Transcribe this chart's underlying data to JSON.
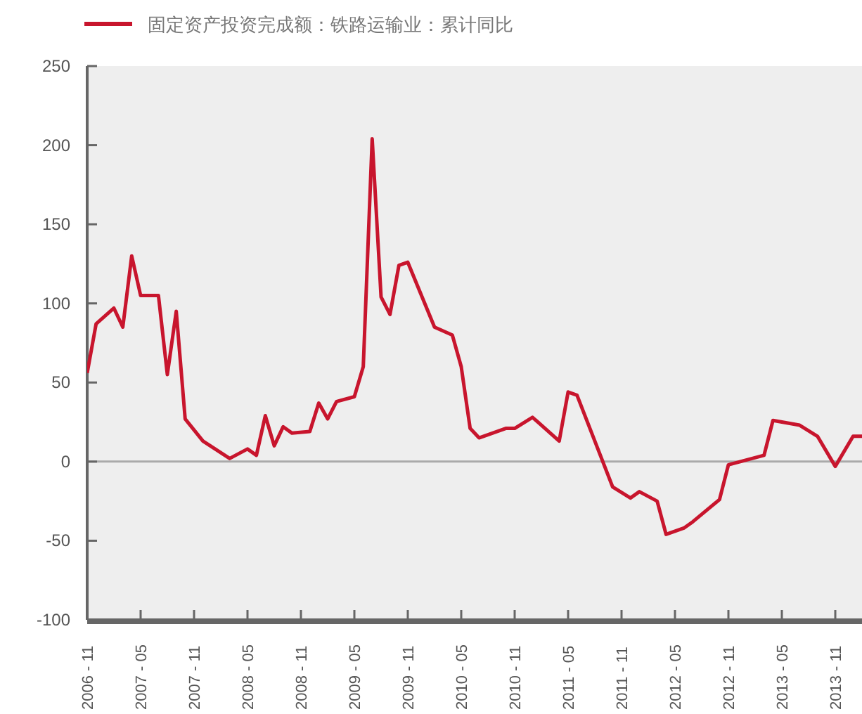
{
  "chart_data": {
    "type": "line",
    "legend": "top left",
    "grid": false,
    "marker": "none",
    "line_style": "solid",
    "xlim": [
      "2006-11",
      "2014-02"
    ],
    "ylim": [
      -100,
      250
    ],
    "yticks": [
      -100,
      -50,
      0,
      50,
      100,
      150,
      200,
      250
    ],
    "xticks": [
      {
        "value": "2006-11",
        "label": "2006 - 11"
      },
      {
        "value": "2007-05",
        "label": "2007 - 05"
      },
      {
        "value": "2007-11",
        "label": "2007 - 11"
      },
      {
        "value": "2008-05",
        "label": "2008 - 05"
      },
      {
        "value": "2008-11",
        "label": "2008 - 11"
      },
      {
        "value": "2009-05",
        "label": "2009 - 05"
      },
      {
        "value": "2009-11",
        "label": "2009 - 11"
      },
      {
        "value": "2010-05",
        "label": "2010 - 05"
      },
      {
        "value": "2010-11",
        "label": "2010 - 11"
      },
      {
        "value": "2011-05",
        "label": "2011 - 05"
      },
      {
        "value": "2011-11",
        "label": "2011 - 11"
      },
      {
        "value": "2012-05",
        "label": "2012 - 05"
      },
      {
        "value": "2012-11",
        "label": "2012 - 11"
      },
      {
        "value": "2013-05",
        "label": "2013 - 05"
      },
      {
        "value": "2013-11",
        "label": "2013 - 11"
      }
    ],
    "ref_lines": [
      {
        "axis": "y",
        "value": 0,
        "color": "#aaaaaa"
      }
    ],
    "x": [
      "2006-11",
      "2006-12",
      "2007-02",
      "2007-03",
      "2007-04",
      "2007-05",
      "2007-07",
      "2007-08",
      "2007-09",
      "2007-10",
      "2007-12",
      "2008-03",
      "2008-05",
      "2008-06",
      "2008-07",
      "2008-08",
      "2008-09",
      "2008-10",
      "2008-12",
      "2009-01",
      "2009-02",
      "2009-03",
      "2009-05",
      "2009-06",
      "2009-07",
      "2009-08",
      "2009-09",
      "2009-10",
      "2009-11",
      "2010-02",
      "2010-04",
      "2010-05",
      "2010-06",
      "2010-07",
      "2010-10",
      "2010-11",
      "2011-01",
      "2011-04",
      "2011-05",
      "2011-06",
      "2011-10",
      "2011-12",
      "2012-01",
      "2012-03",
      "2012-04",
      "2012-06",
      "2012-07",
      "2012-10",
      "2012-11",
      "2013-03",
      "2013-04",
      "2013-07",
      "2013-09",
      "2013-11",
      "2014-01",
      "2014-02"
    ],
    "series": [
      {
        "name": "固定资产投资完成额：铁路运输业：累计同比",
        "color": "#c8152d",
        "values": [
          56,
          87,
          97,
          85,
          130,
          105,
          105,
          55,
          95,
          27,
          13,
          2,
          8,
          4,
          29,
          10,
          22,
          18,
          19,
          37,
          27,
          38,
          41,
          60,
          204,
          104,
          93,
          124,
          126,
          85,
          80,
          60,
          21,
          15,
          21,
          21,
          28,
          13,
          44,
          42,
          -16,
          -23,
          -19,
          -25,
          -46,
          -42,
          -38,
          -24,
          -2,
          4,
          26,
          23,
          16,
          -3,
          16,
          16
        ]
      }
    ]
  }
}
